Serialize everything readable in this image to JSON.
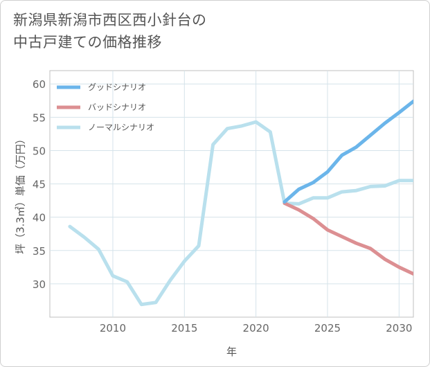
{
  "title": {
    "line1": "新潟県新潟市西区西小針台の",
    "line2": "中古戸建ての価格推移"
  },
  "chart_data": {
    "type": "line",
    "title": "新潟県新潟市西区西小針台の中古戸建ての価格推移",
    "xlabel": "年",
    "ylabel": "坪（3.3㎡）単価（万円）",
    "xlim": [
      2005.6,
      2031
    ],
    "ylim": [
      25,
      62
    ],
    "xticks": [
      2010,
      2015,
      2020,
      2025,
      2030
    ],
    "yticks": [
      30,
      35,
      40,
      45,
      50,
      55,
      60
    ],
    "grid": true,
    "legend_position": "top-left",
    "series": [
      {
        "name": "グッドシナリオ",
        "color": "#6bb5ea",
        "x": [
          2022,
          2023,
          2024,
          2025,
          2026,
          2027,
          2028,
          2029,
          2030,
          2031
        ],
        "y": [
          42.3,
          44.2,
          45.2,
          46.8,
          49.3,
          50.5,
          52.3,
          54.1,
          55.7,
          57.4
        ]
      },
      {
        "name": "バッドシナリオ",
        "color": "#dc8f92",
        "x": [
          2022,
          2023,
          2024,
          2025,
          2026,
          2027,
          2028,
          2029,
          2030,
          2031
        ],
        "y": [
          42.1,
          41.1,
          39.8,
          38.1,
          37.1,
          36.1,
          35.3,
          33.7,
          32.5,
          31.5
        ]
      },
      {
        "name": "ノーマルシナリオ",
        "color": "#b9e0ed",
        "x": [
          2007,
          2008,
          2009,
          2010,
          2011,
          2012,
          2013,
          2014,
          2015,
          2016,
          2017,
          2018,
          2019,
          2020,
          2021,
          2022,
          2023,
          2024,
          2025,
          2026,
          2027,
          2028,
          2029,
          2030,
          2031
        ],
        "y": [
          38.6,
          37.0,
          35.2,
          31.2,
          30.3,
          26.9,
          27.2,
          30.5,
          33.4,
          35.7,
          50.9,
          53.3,
          53.7,
          54.3,
          52.8,
          42.1,
          42.0,
          42.9,
          42.9,
          43.8,
          44.0,
          44.6,
          44.7,
          45.5,
          45.5
        ]
      }
    ]
  }
}
